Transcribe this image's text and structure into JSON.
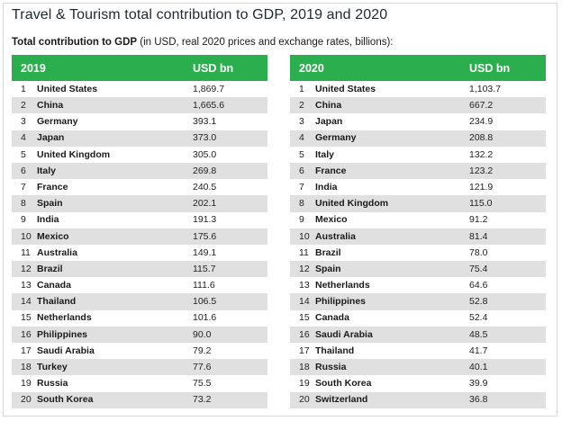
{
  "chart_data": {
    "type": "table",
    "title": "Travel & Tourism total contribution to GDP, 2019 and 2020",
    "subtitle_bold": "Total contribution to GDP",
    "subtitle_rest": " (in USD, real 2020 prices and exchange rates, billions):",
    "tables": [
      {
        "year": "2019",
        "unit_header": "USD bn",
        "rows": [
          {
            "rank": "1",
            "country": "United States",
            "value": "1,869.7"
          },
          {
            "rank": "2",
            "country": "China",
            "value": "1,665.6"
          },
          {
            "rank": "3",
            "country": "Germany",
            "value": "393.1"
          },
          {
            "rank": "4",
            "country": "Japan",
            "value": "373.0"
          },
          {
            "rank": "5",
            "country": "United Kingdom",
            "value": "305.0"
          },
          {
            "rank": "6",
            "country": "Italy",
            "value": "269.8"
          },
          {
            "rank": "7",
            "country": "France",
            "value": "240.5"
          },
          {
            "rank": "8",
            "country": "Spain",
            "value": "202.1"
          },
          {
            "rank": "9",
            "country": "India",
            "value": "191.3"
          },
          {
            "rank": "10",
            "country": "Mexico",
            "value": "175.6"
          },
          {
            "rank": "11",
            "country": "Australia",
            "value": "149.1"
          },
          {
            "rank": "12",
            "country": "Brazil",
            "value": "115.7"
          },
          {
            "rank": "13",
            "country": "Canada",
            "value": "111.6"
          },
          {
            "rank": "14",
            "country": "Thailand",
            "value": "106.5"
          },
          {
            "rank": "15",
            "country": "Netherlands",
            "value": "101.6"
          },
          {
            "rank": "16",
            "country": "Philippines",
            "value": "90.0"
          },
          {
            "rank": "17",
            "country": "Saudi Arabia",
            "value": "79.2"
          },
          {
            "rank": "18",
            "country": "Turkey",
            "value": "77.6"
          },
          {
            "rank": "19",
            "country": "Russia",
            "value": "75.5"
          },
          {
            "rank": "20",
            "country": "South Korea",
            "value": "73.2"
          }
        ]
      },
      {
        "year": "2020",
        "unit_header": "USD bn",
        "rows": [
          {
            "rank": "1",
            "country": "United States",
            "value": "1,103.7"
          },
          {
            "rank": "2",
            "country": "China",
            "value": "667.2"
          },
          {
            "rank": "3",
            "country": "Japan",
            "value": "234.9"
          },
          {
            "rank": "4",
            "country": "Germany",
            "value": "208.8"
          },
          {
            "rank": "5",
            "country": "Italy",
            "value": "132.2"
          },
          {
            "rank": "6",
            "country": "France",
            "value": "123.2"
          },
          {
            "rank": "7",
            "country": "India",
            "value": "121.9"
          },
          {
            "rank": "8",
            "country": "United Kingdom",
            "value": "115.0"
          },
          {
            "rank": "9",
            "country": "Mexico",
            "value": "91.2"
          },
          {
            "rank": "10",
            "country": "Australia",
            "value": "81.4"
          },
          {
            "rank": "11",
            "country": "Brazil",
            "value": "78.0"
          },
          {
            "rank": "12",
            "country": "Spain",
            "value": "75.4"
          },
          {
            "rank": "13",
            "country": "Netherlands",
            "value": "64.6"
          },
          {
            "rank": "14",
            "country": "Philippines",
            "value": "52.8"
          },
          {
            "rank": "15",
            "country": "Canada",
            "value": "52.4"
          },
          {
            "rank": "16",
            "country": "Saudi Arabia",
            "value": "48.5"
          },
          {
            "rank": "17",
            "country": "Thailand",
            "value": "41.7"
          },
          {
            "rank": "18",
            "country": "Russia",
            "value": "40.1"
          },
          {
            "rank": "19",
            "country": "South Korea",
            "value": "39.9"
          },
          {
            "rank": "20",
            "country": "Switzerland",
            "value": "36.8"
          }
        ]
      }
    ]
  },
  "colors": {
    "header_green": "#2bae4d",
    "row_stripe": "#e0e0e0",
    "title_text": "#1f2a30"
  }
}
